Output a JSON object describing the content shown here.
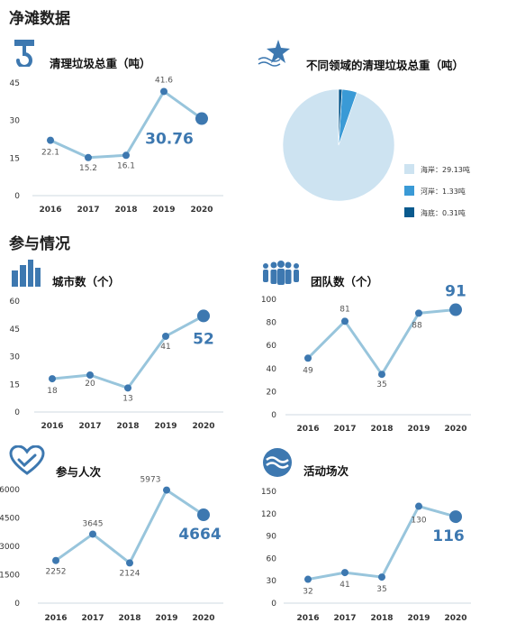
{
  "page": {
    "section1_title": "净滩数据",
    "section2_title": "参与情况"
  },
  "colors": {
    "line": "#98c5dc",
    "marker": "#3d78b0",
    "axis": "#cfd8e0",
    "pie": [
      "#cde3f1",
      "#3a9ad6",
      "#0a5a8e"
    ]
  },
  "icons": {
    "crane-hook": "crane-hook-icon",
    "starfish": "starfish-icon",
    "buildings": "city-buildings-icon",
    "team": "team-people-icon",
    "heart": "heart-hands-icon",
    "wave": "wave-icon"
  },
  "chart_data": [
    {
      "id": "weight",
      "type": "line",
      "title": "清理垃圾总重（吨）",
      "categories": [
        "2016",
        "2017",
        "2018",
        "2019",
        "2020"
      ],
      "values": [
        22.1,
        15.2,
        16.1,
        41.6,
        30.76
      ],
      "labels": [
        "22.1",
        "15.2",
        "16.1",
        "41.6",
        "30.76"
      ],
      "yticks": [
        "0",
        "15",
        "30",
        "45"
      ],
      "ylim": [
        0,
        45
      ],
      "highlight_last": true,
      "grid": false
    },
    {
      "id": "domain",
      "type": "pie",
      "title": "不同领域的清理垃圾总重（吨）",
      "slices": [
        {
          "label": "海岸：29.13吨",
          "value": 29.13
        },
        {
          "label": "河岸：1.33吨",
          "value": 1.33
        },
        {
          "label": "海底：0.31吨",
          "value": 0.31
        }
      ],
      "legend": "right"
    },
    {
      "id": "cities",
      "type": "line",
      "title": "城市数（个）",
      "categories": [
        "2016",
        "2017",
        "2018",
        "2019",
        "2020"
      ],
      "values": [
        18,
        20,
        13,
        41,
        52
      ],
      "labels": [
        "18",
        "20",
        "13",
        "41",
        "52"
      ],
      "yticks": [
        "0",
        "15",
        "30",
        "45",
        "60"
      ],
      "ylim": [
        0,
        60
      ],
      "highlight_last": true,
      "grid": false
    },
    {
      "id": "teams",
      "type": "line",
      "title": "团队数（个）",
      "categories": [
        "2016",
        "2017",
        "2018",
        "2019",
        "2020"
      ],
      "values": [
        49,
        81,
        35,
        88,
        91
      ],
      "labels": [
        "49",
        "81",
        "35",
        "88",
        "91"
      ],
      "yticks": [
        "0",
        "20",
        "40",
        "60",
        "80",
        "100"
      ],
      "ylim": [
        0,
        100
      ],
      "highlight_last": true,
      "grid": false
    },
    {
      "id": "people",
      "type": "line",
      "title": "参与人次",
      "categories": [
        "2016",
        "2017",
        "2018",
        "2019",
        "2020"
      ],
      "values": [
        2252,
        3645,
        2124,
        5973,
        4664
      ],
      "labels": [
        "2252",
        "3645",
        "2124",
        "5973",
        "4664"
      ],
      "yticks": [
        "0",
        "1500",
        "3000",
        "4500",
        "6000"
      ],
      "ylim": [
        0,
        6000
      ],
      "highlight_last": true,
      "grid": false
    },
    {
      "id": "events",
      "type": "line",
      "title": "活动场次",
      "categories": [
        "2016",
        "2017",
        "2018",
        "2019",
        "2020"
      ],
      "values": [
        32,
        41,
        35,
        130,
        116
      ],
      "labels": [
        "32",
        "41",
        "35",
        "130",
        "116"
      ],
      "yticks": [
        "0",
        "30",
        "60",
        "90",
        "120",
        "150"
      ],
      "ylim": [
        0,
        150
      ],
      "highlight_last": true,
      "grid": false
    }
  ]
}
